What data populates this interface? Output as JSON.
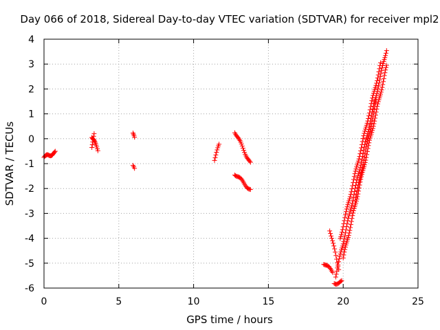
{
  "chart_data": {
    "type": "scatter",
    "title": "Day 066 of 2018, Sidereal Day-to-day VTEC variation (SDTVAR) for receiver mpl2",
    "xlabel": "GPS time / hours",
    "ylabel": "SDTVAR / TECUs",
    "xlim": [
      0,
      25
    ],
    "ylim": [
      -6,
      4
    ],
    "xticks": [
      0,
      5,
      10,
      15,
      20,
      25
    ],
    "yticks": [
      -6,
      -5,
      -4,
      -3,
      -2,
      -1,
      0,
      1,
      2,
      3,
      4
    ],
    "grid": true,
    "marker": "plus",
    "color": "#ff0000",
    "segments": [
      {
        "name": "seg-a",
        "x0": 0.0,
        "x1": 0.75,
        "y0": -0.75,
        "y1": -0.55,
        "n": 18
      },
      {
        "name": "seg-b",
        "x0": 3.2,
        "x1": 3.6,
        "y0": 0.1,
        "y1": -0.45,
        "n": 12
      },
      {
        "name": "seg-b2",
        "x0": 3.2,
        "x1": 3.35,
        "y0": -0.3,
        "y1": 0.15,
        "n": 6
      },
      {
        "name": "seg-c",
        "x0": 5.95,
        "x1": 6.05,
        "y0": 0.2,
        "y1": 0.0,
        "n": 4
      },
      {
        "name": "seg-c2",
        "x0": 5.95,
        "x1": 6.05,
        "y0": -1.1,
        "y1": -1.25,
        "n": 3
      },
      {
        "name": "seg-d",
        "x0": 11.4,
        "x1": 11.7,
        "y0": -0.85,
        "y1": -0.25,
        "n": 8
      },
      {
        "name": "seg-e",
        "x0": 12.75,
        "x1": 13.8,
        "y0": 0.3,
        "y1": -1.0,
        "n": 22
      },
      {
        "name": "seg-f",
        "x0": 12.75,
        "x1": 13.8,
        "y0": -1.4,
        "y1": -2.05,
        "n": 20
      },
      {
        "name": "seg-g",
        "x0": 18.7,
        "x1": 19.3,
        "y0": -5.0,
        "y1": -5.35,
        "n": 12
      },
      {
        "name": "seg-h",
        "x0": 19.1,
        "x1": 19.7,
        "y0": -3.65,
        "y1": -5.2,
        "n": 14
      },
      {
        "name": "seg-i",
        "x0": 19.4,
        "x1": 19.9,
        "y0": -5.8,
        "y1": -5.75,
        "n": 10
      },
      {
        "name": "seg-j",
        "x0": 19.5,
        "x1": 22.9,
        "y0": -5.5,
        "y1": 3.6,
        "n": 90
      },
      {
        "name": "seg-k",
        "x0": 20.0,
        "x1": 22.9,
        "y0": -4.8,
        "y1": 2.9,
        "n": 80
      },
      {
        "name": "seg-l",
        "x0": 19.8,
        "x1": 22.5,
        "y0": -4.0,
        "y1": 3.0,
        "n": 70
      },
      {
        "name": "seg-m",
        "x0": 20.8,
        "x1": 22.2,
        "y0": -2.5,
        "y1": 1.5,
        "n": 35
      }
    ]
  }
}
